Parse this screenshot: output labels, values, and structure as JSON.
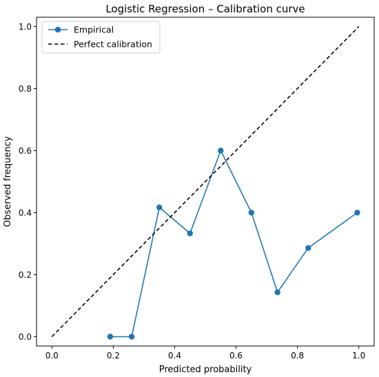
{
  "chart_data": {
    "type": "line",
    "title": "Logistic Regression – Calibration curve",
    "xlabel": "Predicted probability",
    "ylabel": "Observed frequency",
    "xlim": [
      -0.05,
      1.05
    ],
    "ylim": [
      -0.03,
      1.03
    ],
    "xticks": [
      "0.0",
      "0.2",
      "0.4",
      "0.6",
      "0.8",
      "1.0"
    ],
    "yticks": [
      "0.0",
      "0.2",
      "0.4",
      "0.6",
      "0.8",
      "1.0"
    ],
    "grid": false,
    "legend_position": "top-left",
    "series": [
      {
        "name": "Empirical",
        "style": "solid-with-markers",
        "color": "#1f77b4",
        "x": [
          0.19,
          0.26,
          0.35,
          0.45,
          0.55,
          0.65,
          0.735,
          0.835,
          0.995
        ],
        "y": [
          0.0,
          0.0,
          0.417,
          0.333,
          0.6,
          0.4,
          0.143,
          0.286,
          0.4
        ]
      },
      {
        "name": "Perfect calibration",
        "style": "dashed",
        "color": "#000000",
        "x": [
          0.0,
          1.0
        ],
        "y": [
          0.0,
          1.0
        ]
      }
    ]
  }
}
